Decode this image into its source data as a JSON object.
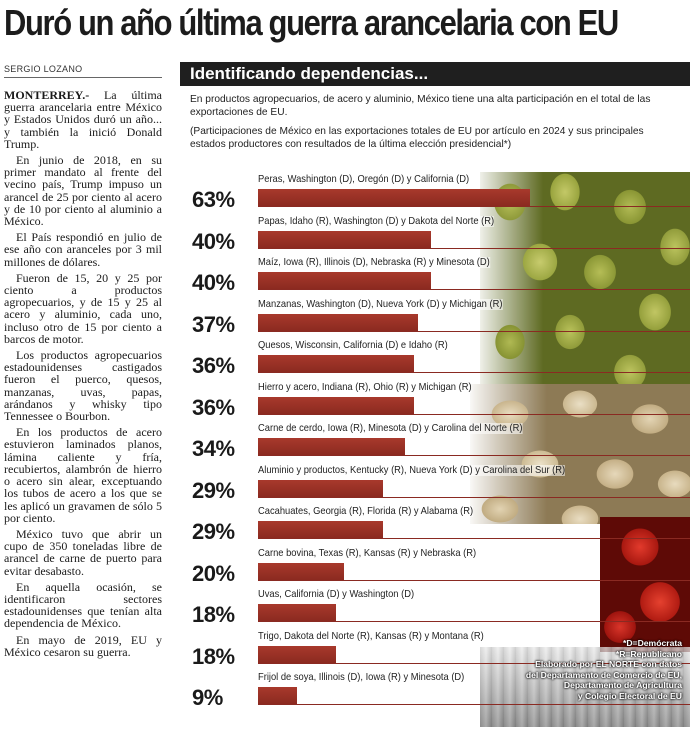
{
  "headline": "Duró un año última guerra arancelaria con EU",
  "byline": "SERGIO LOZANO",
  "article": {
    "dateline": "MONTERREY.-",
    "paragraphs": [
      "La última guerra arancelaria entre México y Estados Unidos duró un año... y también la inició Donald Trump.",
      "En junio de 2018, en su primer mandato al frente del vecino país, Trump impuso un arancel de 25 por ciento al acero y de 10 por ciento al aluminio a México.",
      "El País respondió en julio de ese año con aranceles por 3 mil millones de dólares.",
      "Fueron de 15, 20 y 25 por ciento a productos agropecuarios, y de 15 y 25 al acero y aluminio, cada uno, incluso otro de 15 por ciento a barcos de motor.",
      "Los productos agropecuarios estadounidenses castigados fueron el puerco, quesos, manzanas, uvas, papas, arándanos y whisky tipo Tennessee o Bourbon.",
      "En los productos de acero estuvieron laminados planos, lámina caliente y fría, recubiertos, alambrón de hierro o acero sin alear, exceptuando los tubos de acero a los que se les aplicó un gravamen de sólo 5 por ciento.",
      "México tuvo que abrir un cupo de 350 toneladas libre de arancel de carne de puerto para evitar desabasto.",
      "En aquella ocasión, se identificaron sectores estadounidenses que tenían alta dependencia de México.",
      "En mayo de 2019, EU y México cesaron su guerra."
    ]
  },
  "infographic": {
    "title": "Identificando dependencias...",
    "intro": "En productos agropecuarios, de acero y aluminio, México tiene una alta participación en el total de las exportaciones de EU.",
    "note": "(Participaciones de México en las exportaciones totales de EU por artículo en 2024 y sus principales estados productores con resultados de la última elección presidencial*)",
    "credits": {
      "legend_d": "*D=Demócrata",
      "legend_r": "*R=Republicano",
      "source_1": "Elaborado por EL NORTE con datos",
      "source_2": "del Departamento de Comercio de EU,",
      "source_3": "Departamento de Agricultura",
      "source_4": "y Colegio Electoral de EU"
    },
    "bar_color": "#8b2a20"
  },
  "chart_data": {
    "type": "bar",
    "orientation": "horizontal",
    "unit": "%",
    "xlim": [
      0,
      100
    ],
    "items": [
      {
        "label": "Peras, Washington (D), Oregón (D) y California (D)",
        "value": 63,
        "display": "63%"
      },
      {
        "label": "Papas, Idaho (R), Washington (D) y Dakota del Norte (R)",
        "value": 40,
        "display": "40%"
      },
      {
        "label": "Maíz, Iowa (R), Illinois (D), Nebraska (R) y Minesota (D)",
        "value": 40,
        "display": "40%"
      },
      {
        "label": "Manzanas, Washington (D), Nueva York (D) y Michigan (R)",
        "value": 37,
        "display": "37%"
      },
      {
        "label": "Quesos, Wisconsin, California (D) e Idaho (R)",
        "value": 36,
        "display": "36%"
      },
      {
        "label": "Hierro y acero, Indiana (R), Ohio (R) y Michigan (R)",
        "value": 36,
        "display": "36%"
      },
      {
        "label": "Carne de cerdo, Iowa (R), Minesota (D) y Carolina del Norte (R)",
        "value": 34,
        "display": "34%"
      },
      {
        "label": "Aluminio y productos, Kentucky (R), Nueva York (D) y Carolina del Sur (R)",
        "value": 29,
        "display": "29%"
      },
      {
        "label": "Cacahuates, Georgia (R), Florida (R) y Alabama (R)",
        "value": 29,
        "display": "29%"
      },
      {
        "label": "Carne bovina, Texas (R), Kansas (R) y Nebraska (R)",
        "value": 20,
        "display": "20%"
      },
      {
        "label": "Uvas, California (D) y Washington (D)",
        "value": 18,
        "display": "18%"
      },
      {
        "label": "Trigo, Dakota del Norte (R), Kansas (R) y Montana (R)",
        "value": 18,
        "display": "18%"
      },
      {
        "label": "Frijol de soya, Illinois (D), Iowa (R) y Minesota (D)",
        "value": 9,
        "display": "9%"
      }
    ]
  }
}
